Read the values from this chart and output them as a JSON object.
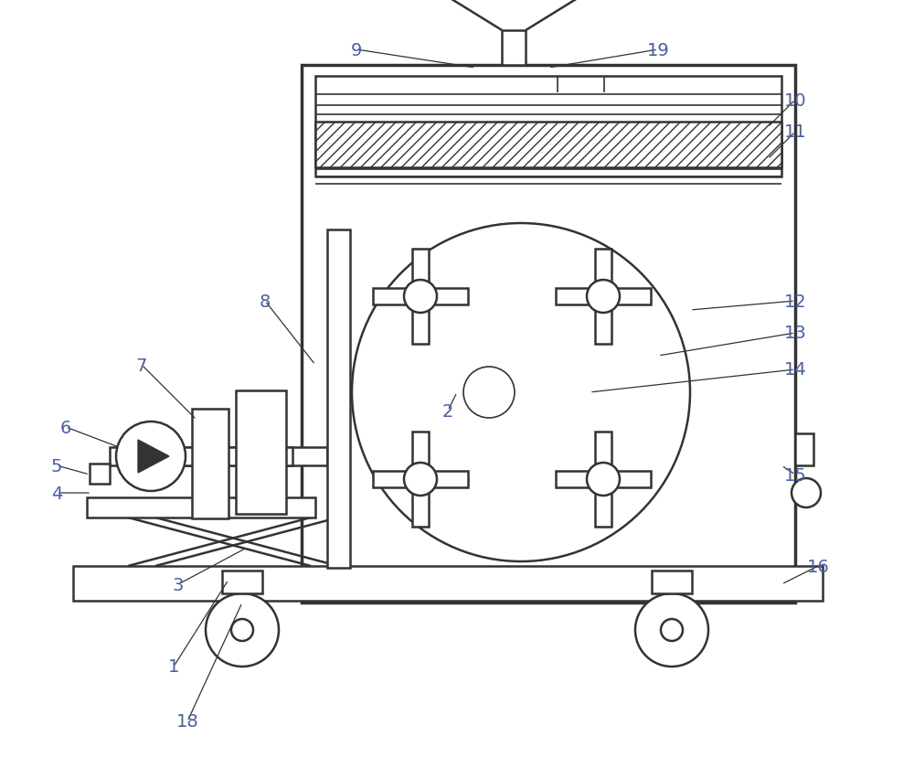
{
  "bg_color": "#ffffff",
  "line_color": "#333333",
  "label_color": "#4a5fa5",
  "figsize": [
    10.0,
    8.53
  ],
  "dpi": 100,
  "lw_main": 1.8,
  "lw_thin": 1.2,
  "fs_label": 14
}
